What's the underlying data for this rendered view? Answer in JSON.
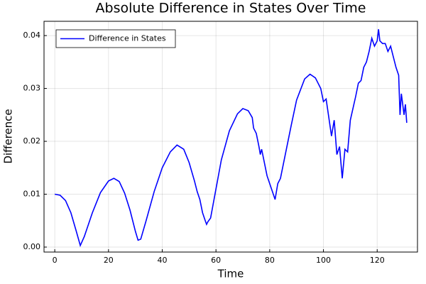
{
  "chart_data": {
    "type": "line",
    "title": "Absolute Difference in States Over Time",
    "xlabel": "Time",
    "ylabel": "Difference",
    "x": [
      0,
      2,
      4,
      6,
      8,
      9.5,
      11,
      14,
      17,
      20,
      22,
      24,
      26,
      28,
      30,
      31,
      32,
      34,
      37,
      40,
      43,
      45.5,
      48,
      50,
      52,
      53,
      54,
      55,
      56,
      56.5,
      57,
      58,
      60,
      62,
      65,
      68,
      70,
      72,
      73.5,
      74,
      75,
      76,
      76.5,
      77,
      78,
      79,
      80,
      81,
      82,
      83,
      84,
      86,
      88,
      90,
      93,
      95,
      97,
      99,
      100,
      101,
      102,
      103,
      104,
      105,
      106,
      107,
      108,
      109,
      110,
      112,
      113,
      114,
      115,
      116,
      117,
      118,
      119,
      120,
      120.5,
      121,
      122,
      123,
      124,
      125,
      126,
      127,
      128,
      128.5,
      129,
      130,
      130.5,
      131
    ],
    "series": [
      {
        "name": "Difference in States",
        "color": "#0000ff",
        "values": [
          0.01,
          0.0098,
          0.0088,
          0.0065,
          0.003,
          0.0003,
          0.002,
          0.0065,
          0.0103,
          0.0125,
          0.013,
          0.0124,
          0.0102,
          0.007,
          0.003,
          0.0013,
          0.0015,
          0.005,
          0.0105,
          0.015,
          0.018,
          0.0193,
          0.0185,
          0.016,
          0.0125,
          0.0105,
          0.009,
          0.0065,
          0.005,
          0.0043,
          0.0048,
          0.0055,
          0.011,
          0.0165,
          0.022,
          0.0252,
          0.0262,
          0.0258,
          0.0245,
          0.0225,
          0.0215,
          0.019,
          0.0175,
          0.0185,
          0.016,
          0.0135,
          0.012,
          0.0105,
          0.009,
          0.012,
          0.013,
          0.018,
          0.023,
          0.0278,
          0.0318,
          0.0327,
          0.032,
          0.03,
          0.0275,
          0.028,
          0.0245,
          0.021,
          0.024,
          0.0175,
          0.019,
          0.013,
          0.0185,
          0.018,
          0.024,
          0.0285,
          0.031,
          0.0315,
          0.034,
          0.035,
          0.037,
          0.0395,
          0.038,
          0.039,
          0.0412,
          0.039,
          0.0385,
          0.0385,
          0.037,
          0.038,
          0.036,
          0.034,
          0.0325,
          0.025,
          0.029,
          0.025,
          0.027,
          0.0235
        ]
      }
    ],
    "xlim": [
      -4,
      135
    ],
    "xticks": [
      0,
      20,
      40,
      60,
      80,
      100,
      120
    ],
    "ylim": [
      -0.00094,
      0.0427
    ],
    "yticks": [
      {
        "value": 0,
        "label": "0.00"
      },
      0.01,
      0.02,
      0.03,
      0.04
    ],
    "grid": true,
    "legend": "top-left"
  }
}
